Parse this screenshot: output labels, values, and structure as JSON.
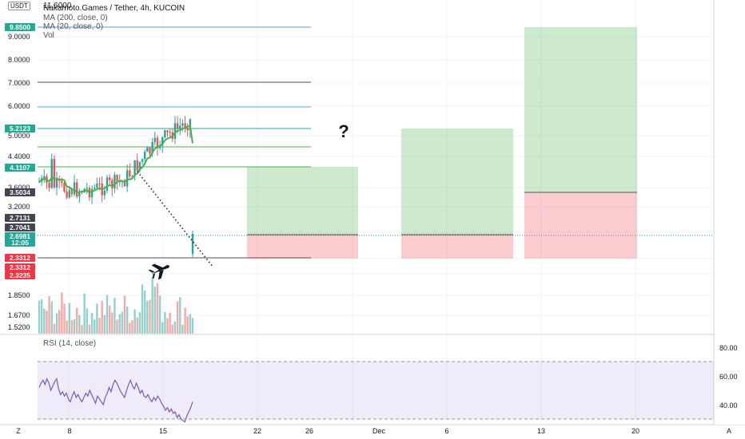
{
  "header": {
    "title": "Nakamoto.Games / Tether, 4h, KUCOIN",
    "indicators": [
      "MA (200, close, 0)",
      "MA (20, close, 0)",
      "Vol"
    ],
    "currency": "USDT",
    "top_price": "11.6000"
  },
  "price_axis": {
    "ticks": [
      "9.0000",
      "8.0000",
      "7.0000",
      "6.0000",
      "5.0000",
      "4.4000",
      "3.6000",
      "3.2000",
      "1.8500",
      "1.6700",
      "1.5200"
    ],
    "badges": [
      {
        "text": "9.8500",
        "color": "#22ab94"
      },
      {
        "text": "5.2123",
        "color": "#22ab94"
      },
      {
        "text": "4.1107",
        "color": "#22ab94"
      },
      {
        "text": "3.5034",
        "color": "#434651"
      },
      {
        "text": "2.7131",
        "color": "#434651"
      },
      {
        "text": "2.7041",
        "color": "#434651"
      },
      {
        "text": "2.6981",
        "color": "#26a69a"
      },
      {
        "text": "12:05",
        "color": "#26a69a"
      },
      {
        "text": "2.3312",
        "color": "#f23645"
      },
      {
        "text": "2.3312",
        "color": "#f23645"
      },
      {
        "text": "2.3235",
        "color": "#f23645"
      }
    ]
  },
  "annotation": {
    "question": "?"
  },
  "rsi": {
    "title": "RSI (14, close)",
    "ticks": [
      "80.00",
      "60.00",
      "40.00"
    ],
    "values": [
      52,
      55,
      57,
      54,
      58,
      55,
      50,
      53,
      56,
      58,
      51,
      47,
      49,
      46,
      48,
      44,
      42,
      46,
      49,
      45,
      47,
      44,
      42,
      45,
      48,
      46,
      50,
      47,
      44,
      41,
      46,
      44,
      42,
      40,
      45,
      48,
      52,
      49,
      54,
      57,
      55,
      52,
      49,
      47,
      45,
      50,
      54,
      57,
      53,
      51,
      55,
      52,
      48,
      50,
      46,
      45,
      47,
      44,
      42,
      45,
      43,
      46,
      44,
      41,
      39,
      36,
      38,
      35,
      37,
      34,
      35,
      31,
      33,
      30,
      29,
      28,
      32,
      35,
      38,
      42
    ]
  },
  "time_axis": {
    "labels": [
      "8",
      "15",
      "22",
      "26",
      "Dec",
      "6",
      "13",
      "20"
    ],
    "zoom_left": "Z",
    "zoom_right": "A"
  },
  "colors": {
    "up": "#26a69a",
    "down": "#ef5350",
    "ma": "#4caf50",
    "target_green": "rgba(76,175,80,0.28)",
    "stop_red": "rgba(242,54,69,0.25)",
    "rsi_fill": "rgba(126,87,194,0.12)",
    "rsi_line": "#7e57c2"
  },
  "icons": {
    "airplane": "airplane-icon"
  }
}
